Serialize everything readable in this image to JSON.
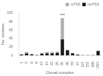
{
  "chart_data": {
    "type": "bar",
    "stacked": true,
    "xlabel": "Clonal complex",
    "ylabel": "No. isolates",
    "categories": [
      "1",
      "5",
      "6",
      "8",
      "12",
      "15",
      "22",
      "25",
      "30",
      "45",
      "59",
      "97",
      "121",
      "152",
      "398",
      "UNK"
    ],
    "series": [
      {
        "name": "nmTSS",
        "color": "#1a1a1a",
        "values": [
          2,
          5,
          3,
          1,
          4,
          5,
          5,
          6,
          38,
          12,
          5,
          2,
          1,
          1,
          1,
          10
        ]
      },
      {
        "name": "mTSS",
        "color": "#b0b0b0",
        "values": [
          1,
          3,
          0,
          1,
          2,
          3,
          3,
          3,
          50,
          2,
          1,
          0,
          0,
          0,
          0,
          2
        ]
      }
    ],
    "ylim": [
      0,
      100
    ],
    "yticks": [
      0,
      20,
      40,
      60,
      80,
      100
    ],
    "annotations": [
      {
        "text": "***",
        "category": "30"
      }
    ],
    "legend": "upper right",
    "grid": false
  }
}
